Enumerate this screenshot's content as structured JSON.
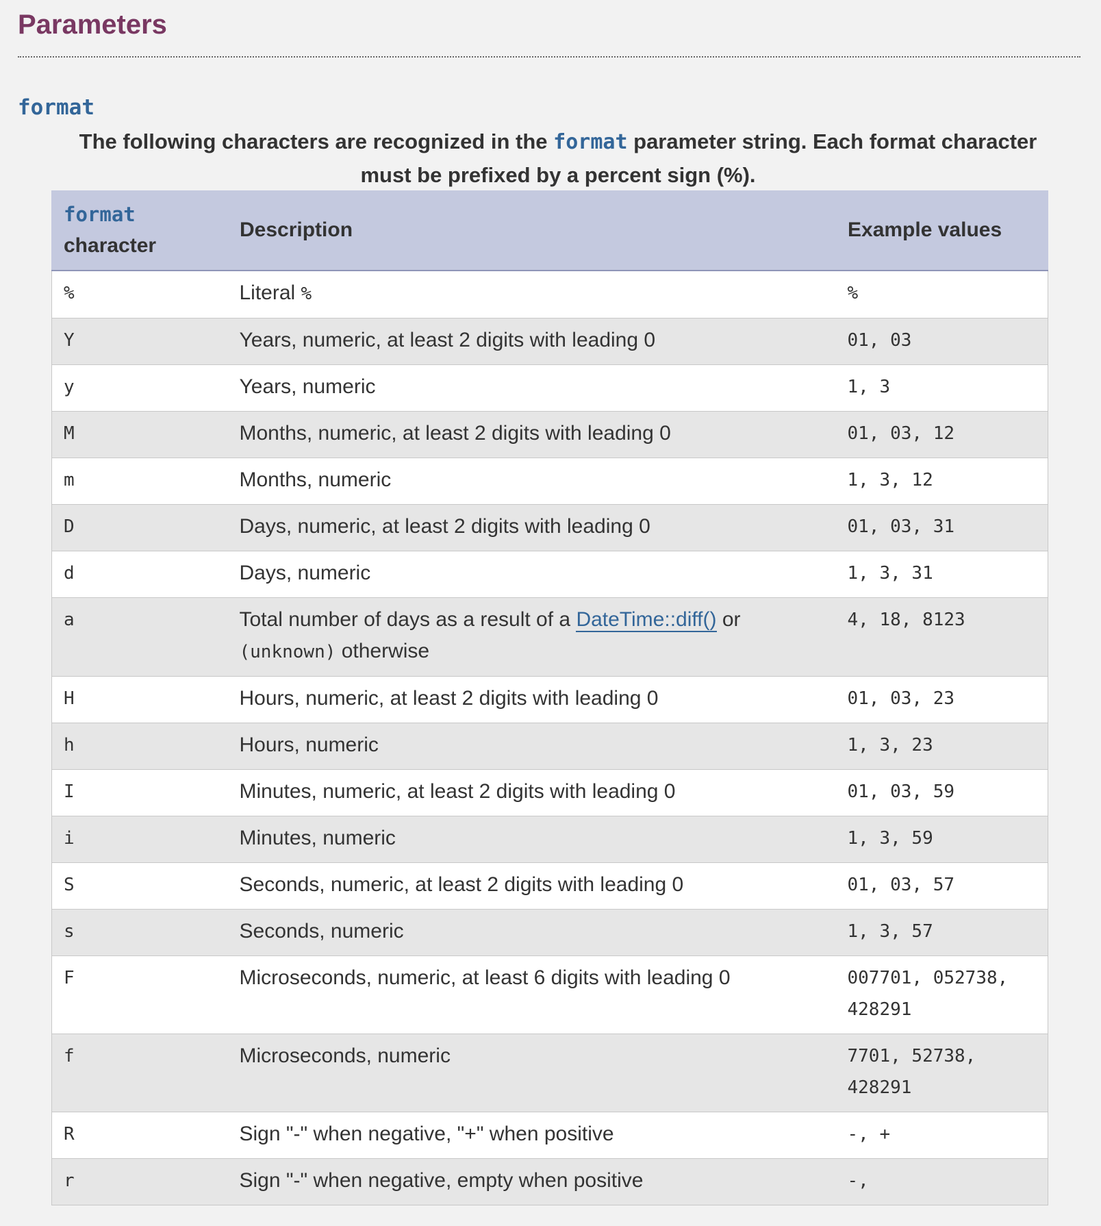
{
  "section": {
    "heading": "Parameters",
    "parameter_name": "format",
    "intro_before": "The following characters are recognized in the ",
    "intro_code": "format",
    "intro_after": " parameter string. Each format character must be prefixed by a percent sign (%)."
  },
  "table": {
    "headers": {
      "char_code": "format",
      "char_text": "character",
      "description": "Description",
      "examples": "Example values"
    },
    "rows": [
      {
        "char": "%",
        "description": [
          {
            "t": "Literal "
          },
          {
            "t": "%",
            "style": "mono"
          }
        ],
        "examples": "%"
      },
      {
        "char": "Y",
        "description": [
          {
            "t": "Years, numeric, at least 2 digits with leading 0"
          }
        ],
        "examples": "01, 03"
      },
      {
        "char": "y",
        "description": [
          {
            "t": "Years, numeric"
          }
        ],
        "examples": "1, 3"
      },
      {
        "char": "M",
        "description": [
          {
            "t": "Months, numeric, at least 2 digits with leading 0"
          }
        ],
        "examples": "01, 03, 12"
      },
      {
        "char": "m",
        "description": [
          {
            "t": "Months, numeric"
          }
        ],
        "examples": "1, 3, 12"
      },
      {
        "char": "D",
        "description": [
          {
            "t": "Days, numeric, at least 2 digits with leading 0"
          }
        ],
        "examples": "01, 03, 31"
      },
      {
        "char": "d",
        "description": [
          {
            "t": "Days, numeric"
          }
        ],
        "examples": "1, 3, 31"
      },
      {
        "char": "a",
        "description": [
          {
            "t": "Total number of days as a result of a "
          },
          {
            "t": "DateTime::diff()",
            "style": "link"
          },
          {
            "t": " or "
          },
          {
            "t": "(unknown)",
            "style": "mono"
          },
          {
            "t": " otherwise"
          }
        ],
        "examples": "4, 18, 8123"
      },
      {
        "char": "H",
        "description": [
          {
            "t": "Hours, numeric, at least 2 digits with leading 0"
          }
        ],
        "examples": "01, 03, 23"
      },
      {
        "char": "h",
        "description": [
          {
            "t": "Hours, numeric"
          }
        ],
        "examples": "1, 3, 23"
      },
      {
        "char": "I",
        "description": [
          {
            "t": "Minutes, numeric, at least 2 digits with leading 0"
          }
        ],
        "examples": "01, 03, 59"
      },
      {
        "char": "i",
        "description": [
          {
            "t": "Minutes, numeric"
          }
        ],
        "examples": "1, 3, 59"
      },
      {
        "char": "S",
        "description": [
          {
            "t": "Seconds, numeric, at least 2 digits with leading 0"
          }
        ],
        "examples": "01, 03, 57"
      },
      {
        "char": "s",
        "description": [
          {
            "t": "Seconds, numeric"
          }
        ],
        "examples": "1, 3, 57"
      },
      {
        "char": "F",
        "description": [
          {
            "t": "Microseconds, numeric, at least 6 digits with leading 0"
          }
        ],
        "examples": "007701, 052738, 428291"
      },
      {
        "char": "f",
        "description": [
          {
            "t": "Microseconds, numeric"
          }
        ],
        "examples": "7701, 52738, 428291"
      },
      {
        "char": "R",
        "description": [
          {
            "t": "Sign \"-\" when negative, \"+\" when positive"
          }
        ],
        "examples": "-, +"
      },
      {
        "char": "r",
        "description": [
          {
            "t": "Sign \"-\" when negative, empty when positive"
          }
        ],
        "examples": "-,"
      }
    ]
  },
  "colors": {
    "heading": "#793862",
    "code": "#336699",
    "header_bg": "#c4c9df",
    "row_alt_bg": "#e6e6e6",
    "page_bg": "#f2f2f2"
  }
}
